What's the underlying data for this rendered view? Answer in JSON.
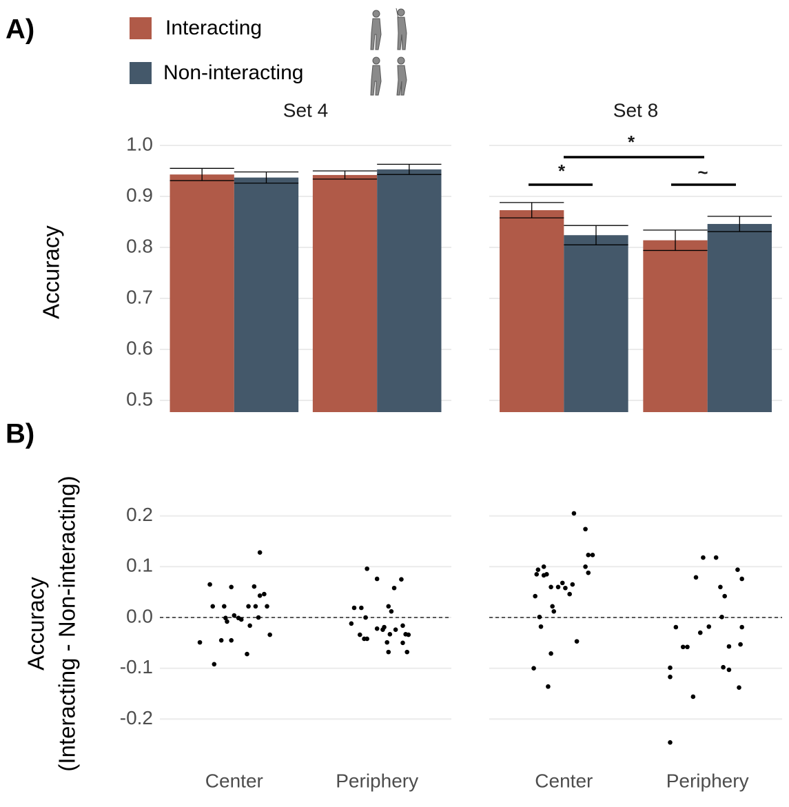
{
  "chart_data": [
    {
      "type": "bar",
      "label": "A)",
      "ylabel": "Accuracy",
      "facets": [
        "Set 4",
        "Set 8"
      ],
      "categories": [
        "Center",
        "Periphery"
      ],
      "series": [
        {
          "name": "Interacting",
          "color": "#b05a48",
          "values": [
            [
              0.943,
              0.942
            ],
            [
              0.873,
              0.814
            ]
          ],
          "errors": [
            [
              0.012,
              0.008
            ],
            [
              0.015,
              0.02
            ]
          ]
        },
        {
          "name": "Non-interacting",
          "color": "#44586a",
          "values": [
            [
              0.937,
              0.953
            ],
            [
              0.824,
              0.846
            ]
          ],
          "errors": [
            [
              0.011,
              0.01
            ],
            [
              0.019,
              0.015
            ]
          ]
        }
      ],
      "significance": [
        {
          "label": "*"
        },
        {
          "label": "~"
        },
        {
          "label": "*"
        }
      ],
      "xlim": [
        0.48,
        2.52
      ],
      "ylim": [
        0.477,
        1.023
      ],
      "yticks": [
        0.5,
        0.6,
        0.7,
        0.8,
        0.9,
        {
          "value": 1,
          "label": "1.0"
        }
      ],
      "grid": true
    },
    {
      "type": "scatter",
      "label": "B)",
      "ylabel": [
        "Accuracy",
        "(Interacting - Non-interacting)"
      ],
      "facets": [
        "Set 4",
        "Set 8"
      ],
      "categories": [
        "Center",
        "Periphery"
      ],
      "color": "#000000",
      "points": [
        [
          {
            "x": [
              0.76,
              0.83,
              0.85,
              0.86,
              0.91,
              0.93,
              0.94,
              0.95,
              0.98,
              0.98,
              1.0,
              1.03,
              1.05,
              1.09,
              1.1,
              1.11,
              1.14,
              1.15,
              1.17,
              1.18,
              1.21,
              1.18,
              1.23,
              1.25
            ],
            "y": [
              -0.049,
              0.065,
              0.022,
              -0.092,
              -0.045,
              0.022,
              -0.001,
              -0.008,
              -0.045,
              0.06,
              0.004,
              -0.001,
              -0.004,
              -0.072,
              0.022,
              -0.016,
              0.061,
              0.022,
              0.0,
              0.043,
              0.046,
              0.128,
              0.022,
              -0.034
            ]
          },
          {
            "x": [
              1.82,
              1.84,
              1.89,
              1.88,
              1.91,
              1.93,
              1.92,
              1.93,
              2.0,
              2.0,
              2.04,
              2.05,
              2.07,
              2.08,
              2.08,
              2.1,
              2.09,
              2.12,
              2.13,
              2.17,
              2.18,
              2.18,
              2.2,
              2.21,
              2.22
            ],
            "y": [
              -0.012,
              0.019,
              0.019,
              -0.034,
              -0.042,
              0.096,
              0.0,
              -0.042,
              0.076,
              -0.022,
              -0.024,
              -0.019,
              -0.049,
              0.022,
              -0.068,
              0.012,
              -0.033,
              0.058,
              -0.024,
              0.075,
              -0.05,
              -0.016,
              -0.033,
              -0.068,
              -0.034
            ]
          }
        ],
        [
          {
            "x": [
              0.79,
              0.8,
              0.81,
              0.82,
              0.83,
              0.84,
              0.86,
              0.86,
              0.88,
              0.89,
              0.91,
              0.91,
              0.92,
              0.93,
              0.96,
              0.99,
              1.01,
              1.04,
              1.06,
              1.07,
              1.09,
              1.15,
              1.15,
              1.17,
              1.17,
              1.2
            ],
            "y": [
              -0.1,
              0.042,
              0.085,
              0.094,
              0.001,
              -0.018,
              0.083,
              0.1,
              0.085,
              -0.136,
              -0.071,
              0.06,
              0.022,
              0.012,
              0.06,
              0.068,
              0.058,
              0.046,
              0.065,
              0.205,
              -0.047,
              0.1,
              0.174,
              0.123,
              0.088,
              0.123
            ]
          },
          {
            "x": [
              1.74,
              1.74,
              1.74,
              1.78,
              1.83,
              1.86,
              1.9,
              1.92,
              1.95,
              1.97,
              2.01,
              2.06,
              2.09,
              2.1,
              2.11,
              2.12,
              2.15,
              2.15,
              2.21,
              2.22,
              2.23,
              2.24,
              2.24
            ],
            "y": [
              -0.246,
              -0.099,
              -0.117,
              -0.019,
              -0.058,
              -0.058,
              -0.156,
              0.079,
              -0.03,
              0.118,
              -0.018,
              0.118,
              0.06,
              0.001,
              -0.098,
              0.042,
              -0.103,
              -0.057,
              0.094,
              -0.138,
              -0.053,
              -0.019,
              0.076
            ]
          }
        ]
      ],
      "hline": 0,
      "xlim": [
        0.48,
        2.52
      ],
      "ylim": [
        -0.27,
        0.27
      ],
      "yticks": [
        -0.2,
        -0.1,
        {
          "value": 0,
          "label": "0.0"
        },
        0.1,
        0.2
      ],
      "grid": true
    }
  ]
}
